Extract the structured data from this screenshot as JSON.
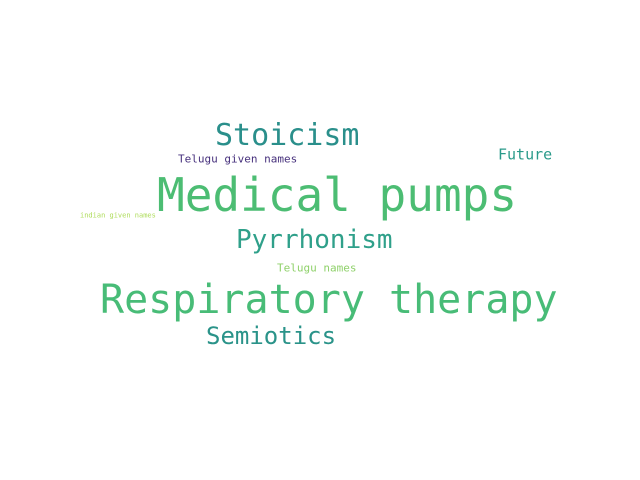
{
  "words": [
    {
      "text": "Medical pumps",
      "color": "#4cbd73"
    },
    {
      "text": "Respiratory therapy",
      "color": "#48bc77"
    },
    {
      "text": "Stoicism",
      "color": "#2a8f8b"
    },
    {
      "text": "Pyrrhonism",
      "color": "#2fa08a"
    },
    {
      "text": "Semiotics",
      "color": "#2a9389"
    },
    {
      "text": "Future",
      "color": "#2a9a8a"
    },
    {
      "text": "Telugu given names",
      "color": "#46307c"
    },
    {
      "text": "Telugu names",
      "color": "#8fd16a"
    },
    {
      "text": "indian given names",
      "color": "#aedc5a"
    }
  ]
}
